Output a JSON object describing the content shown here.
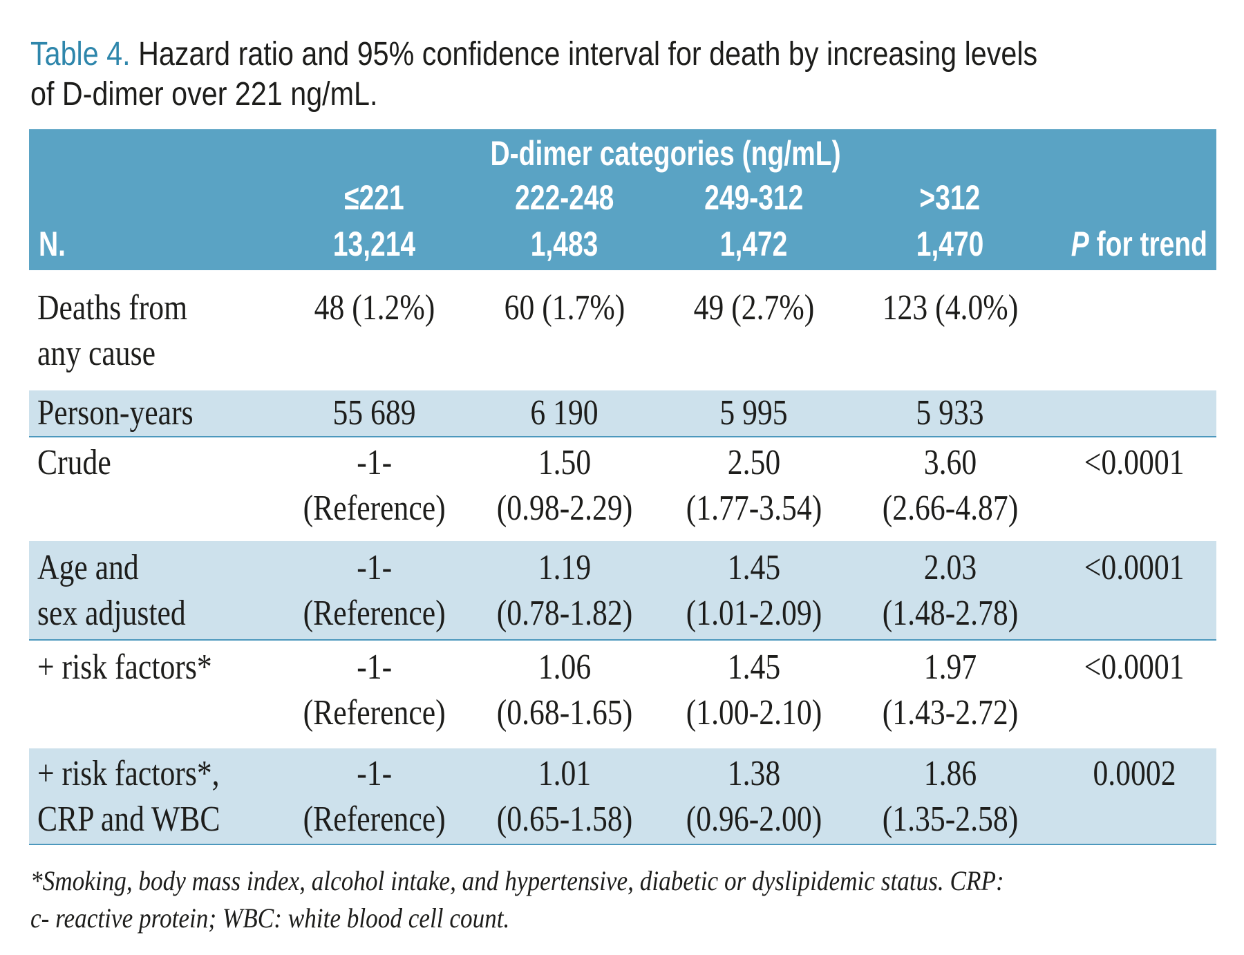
{
  "caption": {
    "label": "Table 4.",
    "line1": "Hazard ratio and 95% confidence interval for death by increasing levels",
    "line2": "of D-dimer over 221 ng/mL."
  },
  "header": {
    "group_title": "D-dimer categories (ng/mL)",
    "n_label": "N.",
    "p_label_italic": "P",
    "p_label_rest": " for trend",
    "categories": [
      "≤221",
      "222-248",
      "249-312",
      ">312"
    ],
    "n_values": [
      "13,214",
      "1,483",
      "1,472",
      "1,470"
    ]
  },
  "rows": [
    {
      "label_line1": "Deaths from",
      "label_line2": "any cause",
      "cells": [
        {
          "line1": "48 (1.2%)",
          "line2": ""
        },
        {
          "line1": "60 (1.7%)",
          "line2": ""
        },
        {
          "line1": "49 (2.7%)",
          "line2": ""
        },
        {
          "line1": "123 (4.0%)",
          "line2": ""
        }
      ],
      "p": ""
    },
    {
      "label_line1": "Person-years",
      "label_line2": "",
      "cells": [
        {
          "line1": "55 689",
          "line2": ""
        },
        {
          "line1": "6 190",
          "line2": ""
        },
        {
          "line1": "5 995",
          "line2": ""
        },
        {
          "line1": "5 933",
          "line2": ""
        }
      ],
      "p": ""
    },
    {
      "label_line1": "Crude",
      "label_line2": "",
      "cells": [
        {
          "line1": "-1-",
          "line2": "(Reference)"
        },
        {
          "line1": "1.50",
          "line2": "(0.98-2.29)"
        },
        {
          "line1": "2.50",
          "line2": "(1.77-3.54)"
        },
        {
          "line1": "3.60",
          "line2": "(2.66-4.87)"
        }
      ],
      "p": "<0.0001"
    },
    {
      "label_line1": "Age and",
      "label_line2": "sex adjusted",
      "cells": [
        {
          "line1": "-1-",
          "line2": "(Reference)"
        },
        {
          "line1": "1.19",
          "line2": "(0.78-1.82)"
        },
        {
          "line1": "1.45",
          "line2": "(1.01-2.09)"
        },
        {
          "line1": "2.03",
          "line2": "(1.48-2.78)"
        }
      ],
      "p": "<0.0001"
    },
    {
      "label_line1": "+ risk factors*",
      "label_line2": "",
      "cells": [
        {
          "line1": "-1-",
          "line2": "(Reference)"
        },
        {
          "line1": "1.06",
          "line2": "(0.68-1.65)"
        },
        {
          "line1": "1.45",
          "line2": "(1.00-2.10)"
        },
        {
          "line1": "1.97",
          "line2": "(1.43-2.72)"
        }
      ],
      "p": "<0.0001"
    },
    {
      "label_line1": "+ risk factors*,",
      "label_line2": "CRP and WBC",
      "cells": [
        {
          "line1": "-1-",
          "line2": "(Reference)"
        },
        {
          "line1": "1.01",
          "line2": "(0.65-1.58)"
        },
        {
          "line1": "1.38",
          "line2": "(0.96-2.00)"
        },
        {
          "line1": "1.86",
          "line2": "(1.35-2.58)"
        }
      ],
      "p": "0.0002"
    }
  ],
  "footnote": {
    "line1": "*Smoking, body mass index, alcohol intake, and hypertensive, diabetic or dyslipidemic status. CRP:",
    "line2": "c- reactive protein; WBC: white blood cell count."
  },
  "colors": {
    "header_bg": "#5aa3c4",
    "shade_bg": "#cde1ec",
    "caption_label": "#2e86ab",
    "rule": "#4c98bd"
  }
}
